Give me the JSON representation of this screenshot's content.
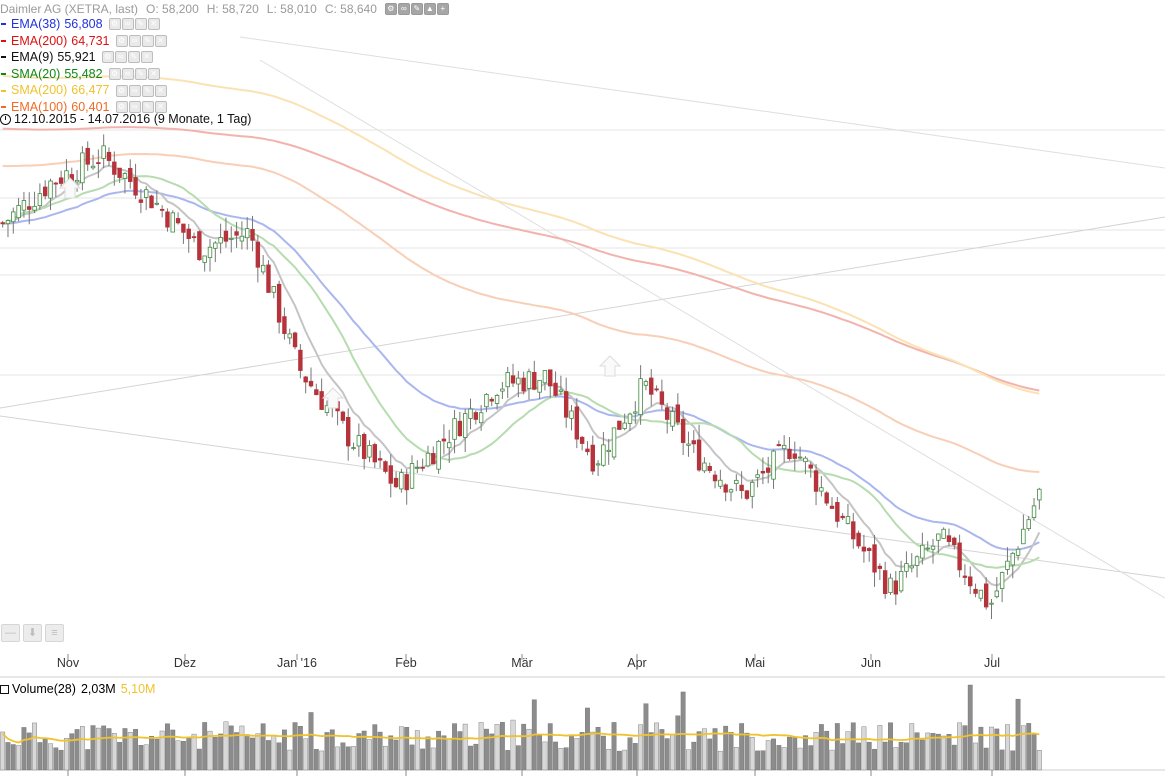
{
  "header": {
    "title": "Daimler AG (XETRA, last)",
    "open": "O: 58,200",
    "high": "H: 58,720",
    "low": "L: 58,010",
    "close": "C: 58,640"
  },
  "date_range": "12.10.2015 - 14.07.2016 (9 Monate, 1 Tag)",
  "volume": {
    "label": "Volume(28)",
    "value": "2,03M",
    "avg": "5,10M",
    "avg_color": "#f0c22e"
  },
  "chart_data": {
    "type": "candlestick",
    "price_unit": "EUR",
    "x_ticks": [
      "Nov",
      "Dez",
      "Jan '16",
      "Feb",
      "Mär",
      "Apr",
      "Mai",
      "Jun",
      "Jul"
    ],
    "indicators": [
      {
        "name": "EMA(38)",
        "value": "56,808",
        "color": "#2233dd",
        "line_color": "#aab7ee"
      },
      {
        "name": "EMA(200)",
        "value": "64,731",
        "color": "#dd1111",
        "line_color": "#f2b3ad"
      },
      {
        "name": "EMA(9)",
        "value": "55,921",
        "color": "#111111",
        "line_color": "#c4c4c4"
      },
      {
        "name": "SMA(20)",
        "value": "55,482",
        "color": "#118811",
        "line_color": "#b6dcb0"
      },
      {
        "name": "SMA(200)",
        "value": "66,477",
        "color": "#f0c22e",
        "line_color": "#fbe2b3"
      },
      {
        "name": "EMA(100)",
        "value": "60,401",
        "color": "#f06b27",
        "line_color": "#f8cfb6"
      }
    ],
    "price_series_approx": {
      "dates": [
        "2015-10-12",
        "2015-11-02",
        "2015-11-16",
        "2015-12-01",
        "2015-12-15",
        "2016-01-04",
        "2016-01-15",
        "2016-02-01",
        "2016-02-11",
        "2016-02-25",
        "2016-03-07",
        "2016-03-24",
        "2016-04-08",
        "2016-04-20",
        "2016-05-03",
        "2016-05-18",
        "2016-06-01",
        "2016-06-15",
        "2016-06-24",
        "2016-06-27",
        "2016-07-05",
        "2016-07-14"
      ],
      "close": [
        74.5,
        77.0,
        78.5,
        76.0,
        73.0,
        74.0,
        66.0,
        62.0,
        59.0,
        62.0,
        65.0,
        65.5,
        60.5,
        65.0,
        61.0,
        58.5,
        61.5,
        57.0,
        53.0,
        56.0,
        52.0,
        58.64
      ]
    },
    "volume_avg_line": "5,10M"
  }
}
